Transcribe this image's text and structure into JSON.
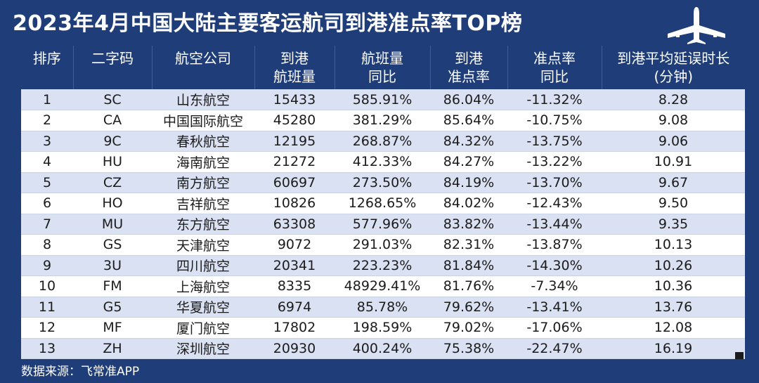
{
  "title": "2023年4月中国大陆主要客运航司到港准点率TOP榜",
  "footer": "数据来源：飞常准APP",
  "colors": {
    "header_bg": "#1f3d78",
    "row_alt": "#d9e1f2",
    "row_plain": "#ffffff",
    "text": "#1b1b1b"
  },
  "icons": {
    "logo": "airplane-icon"
  },
  "chart_data": {
    "type": "table",
    "columns": [
      "排序\n",
      "二字码\n",
      "航空公司\n",
      "到港\n航班量",
      "航班量\n同比",
      "到港\n准点率",
      "准点率\n同比",
      "到港平均延误时长\n(分钟)"
    ],
    "rows": [
      [
        "1",
        "SC",
        "山东航空",
        "15433",
        "585.91%",
        "86.04%",
        "-11.32%",
        "8.28"
      ],
      [
        "2",
        "CA",
        "中国国际航空",
        "45280",
        "381.29%",
        "85.64%",
        "-10.75%",
        "9.08"
      ],
      [
        "3",
        "9C",
        "春秋航空",
        "12195",
        "268.87%",
        "84.32%",
        "-13.75%",
        "9.06"
      ],
      [
        "4",
        "HU",
        "海南航空",
        "21272",
        "412.33%",
        "84.27%",
        "-13.22%",
        "10.91"
      ],
      [
        "5",
        "CZ",
        "南方航空",
        "60697",
        "273.50%",
        "84.19%",
        "-13.70%",
        "9.67"
      ],
      [
        "6",
        "HO",
        "吉祥航空",
        "10826",
        "1268.65%",
        "84.02%",
        "-12.43%",
        "9.50"
      ],
      [
        "7",
        "MU",
        "东方航空",
        "63308",
        "577.96%",
        "83.82%",
        "-13.44%",
        "9.35"
      ],
      [
        "8",
        "GS",
        "天津航空",
        "9072",
        "291.03%",
        "82.31%",
        "-13.87%",
        "10.13"
      ],
      [
        "9",
        "3U",
        "四川航空",
        "20341",
        "223.23%",
        "81.84%",
        "-14.30%",
        "10.26"
      ],
      [
        "10",
        "FM",
        "上海航空",
        "8335",
        "48929.41%",
        "81.76%",
        "-7.34%",
        "10.36"
      ],
      [
        "11",
        "G5",
        "华夏航空",
        "6974",
        "85.78%",
        "79.62%",
        "-13.41%",
        "13.76"
      ],
      [
        "12",
        "MF",
        "厦门航空",
        "17802",
        "198.59%",
        "79.02%",
        "-17.06%",
        "12.08"
      ],
      [
        "13",
        "ZH",
        "深圳航空",
        "20930",
        "400.24%",
        "75.38%",
        "-22.47%",
        "16.19"
      ]
    ]
  }
}
